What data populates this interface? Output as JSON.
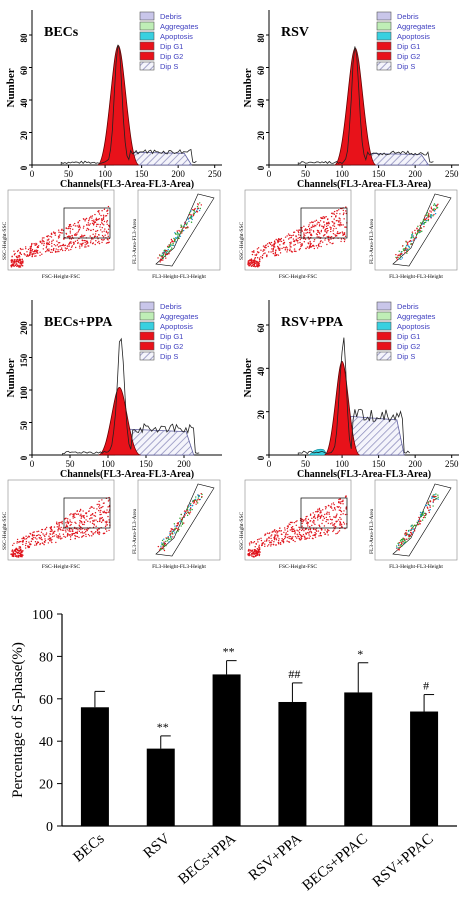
{
  "histogram_panels": [
    {
      "title": "BECs",
      "ylabel": "Number",
      "xlabel": "Channels(FL3-Area-FL3-Area)",
      "y_ticks": [
        "0",
        "20",
        "40",
        "60",
        "80"
      ],
      "x_ticks": [
        "0",
        "50",
        "100",
        "150",
        "200",
        "250"
      ],
      "legend": [
        "Debris",
        "Aggregates",
        "Apoptosis",
        "Dip G1",
        "Dip G2",
        "Dip S"
      ],
      "scatter_left": {
        "y_label": "SSC-Height-SSC",
        "x_label": "FSC-Height-FSC"
      },
      "scatter_right": {
        "y_label": "FL3-Area-FL3-Area",
        "x_label": "FL3-Height-FL3-Height"
      }
    },
    {
      "title": "RSV",
      "ylabel": "Number",
      "xlabel": "Channels(FL3-Area-FL3-Area)",
      "y_ticks": [
        "0",
        "20",
        "40",
        "60",
        "80"
      ],
      "x_ticks": [
        "0",
        "50",
        "100",
        "150",
        "200",
        "250"
      ],
      "legend": [
        "Debris",
        "Aggregates",
        "Apoptosis",
        "Dip G1",
        "Dip G2",
        "Dip S"
      ],
      "scatter_left": {
        "y_label": "SSC-Height-SSC",
        "x_label": "FSC-Height-FSC"
      },
      "scatter_right": {
        "y_label": "FL3-Area-FL3-Area",
        "x_label": "FL3-Height-FL3-Height"
      }
    },
    {
      "title": "BECs+PPA",
      "ylabel": "Number",
      "xlabel": "Channels(FL3-Area-FL3-Area)",
      "y_ticks": [
        "0",
        "50",
        "100",
        "150",
        "200"
      ],
      "x_ticks": [
        "0",
        "50",
        "100",
        "150",
        "200"
      ],
      "legend": [
        "Debris",
        "Aggregates",
        "Apoptosis",
        "Dip G1",
        "Dip G2",
        "Dip S"
      ],
      "scatter_left": {
        "y_label": "SSC-Height-SSC",
        "x_label": "FSC-Height-FSC"
      },
      "scatter_right": {
        "y_label": "FL3-Area-FL3-Area",
        "x_label": "FL3-Height-FL3-Height"
      }
    },
    {
      "title": "RSV+PPA",
      "ylabel": "Number",
      "xlabel": "Channels(FL3-Area-FL3-Area)",
      "y_ticks": [
        "0",
        "20",
        "40",
        "60"
      ],
      "x_ticks": [
        "0",
        "50",
        "100",
        "150",
        "200",
        "250"
      ],
      "legend": [
        "Debris",
        "Aggregates",
        "Apoptosis",
        "Dip G1",
        "Dip G2",
        "Dip S"
      ],
      "scatter_left": {
        "y_label": "SSC-Height-SSC",
        "x_label": "FSC-Height-FSC"
      },
      "scatter_right": {
        "y_label": "FL3-Area-FL3-Area",
        "x_label": "FL3-Height-FL3-Height"
      }
    }
  ],
  "legend_colors": {
    "Debris": "#c9c6ea",
    "Aggregates": "#bfeeb6",
    "Apoptosis": "#38d0e0",
    "Dip G1": "#e8121a",
    "Dip G2": "#e8121a",
    "Dip S": "hatch"
  },
  "chart_data": {
    "type": "bar",
    "categories": [
      "BECs",
      "RSV",
      "BECs+PPA",
      "RSV+PPA",
      "BECs+PPAC",
      "RSV+PPAC"
    ],
    "values": [
      56,
      36.5,
      71.5,
      58.5,
      63,
      54
    ],
    "errors": [
      7.5,
      6,
      6.5,
      9,
      14,
      8
    ],
    "annotations": [
      "",
      "**",
      "**",
      "##",
      "*",
      "#"
    ],
    "ylabel": "Percentage of S-phase(%)",
    "xlabel": "",
    "ylim": [
      0,
      100
    ],
    "y_ticks": [
      0,
      20,
      40,
      60,
      80,
      100
    ],
    "bar_color": "#000000",
    "grid": false
  }
}
